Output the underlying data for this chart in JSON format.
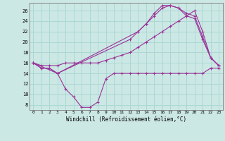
{
  "xlabel": "Windchill (Refroidissement éolien,°C)",
  "background_color": "#cce8e4",
  "grid_color": "#aad8d4",
  "line_color": "#993399",
  "xlim": [
    -0.5,
    23.5
  ],
  "ylim": [
    7,
    27.5
  ],
  "yticks": [
    8,
    10,
    12,
    14,
    16,
    18,
    20,
    22,
    24,
    26
  ],
  "xticks": [
    0,
    1,
    2,
    3,
    4,
    5,
    6,
    7,
    8,
    9,
    10,
    11,
    12,
    13,
    14,
    15,
    16,
    17,
    18,
    19,
    20,
    21,
    22,
    23
  ],
  "series1_x": [
    0,
    1,
    2,
    3,
    4,
    5,
    6,
    7,
    8,
    9,
    10,
    11,
    12,
    13,
    14,
    15,
    16,
    17,
    18,
    19,
    20,
    21,
    22,
    23
  ],
  "series1_y": [
    16,
    15,
    15,
    14,
    11,
    9.5,
    7.5,
    7.5,
    8.5,
    13,
    14,
    14,
    14,
    14,
    14,
    14,
    14,
    14,
    14,
    14,
    14,
    14,
    15,
    15
  ],
  "series2_x": [
    0,
    1,
    2,
    3,
    4,
    5,
    6,
    7,
    8,
    9,
    10,
    11,
    12,
    13,
    14,
    15,
    16,
    17,
    18,
    19,
    20,
    21,
    22,
    23
  ],
  "series2_y": [
    16,
    15.5,
    15.5,
    15.5,
    16,
    16,
    16,
    16,
    16,
    16.5,
    17,
    17.5,
    18,
    19,
    20,
    21,
    22,
    23,
    24,
    25,
    26,
    22,
    17,
    15.5
  ],
  "series3_x": [
    0,
    3,
    13,
    14,
    15,
    16,
    17,
    18,
    19,
    20,
    21,
    22,
    23
  ],
  "series3_y": [
    16,
    14,
    22,
    23.5,
    25,
    26.5,
    27,
    26.5,
    25.5,
    25,
    21,
    17,
    15.5
  ],
  "series4_x": [
    0,
    1,
    2,
    3,
    12,
    13,
    14,
    15,
    16,
    17,
    18,
    19,
    20,
    21,
    22,
    23
  ],
  "series4_y": [
    16,
    15,
    15,
    14,
    20.5,
    22,
    23.5,
    25.5,
    27,
    27,
    26.5,
    25,
    24.5,
    20.5,
    17,
    15.5
  ]
}
